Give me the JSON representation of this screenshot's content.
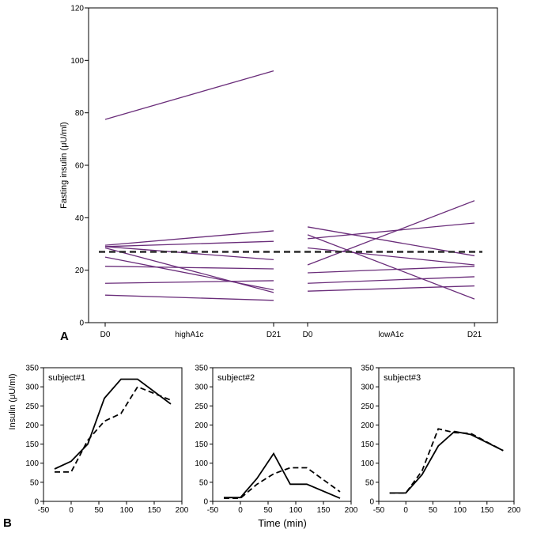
{
  "figure": {
    "panel_a": "A",
    "panel_b": "B",
    "shared_xlabel_b": "Time (min)"
  },
  "colors": {
    "subject_line": "#6a2d7a",
    "reference_line": "#333333",
    "solid_series": "#000000",
    "dashed_series": "#000000"
  },
  "chart_data": [
    {
      "id": "A",
      "type": "line",
      "title": "",
      "ylabel": "Fasting insulin (μU/ml)",
      "ylim": [
        0,
        120
      ],
      "yticks": [
        0,
        20,
        40,
        60,
        80,
        100,
        120
      ],
      "grid": false,
      "tick_labels": [
        "D0",
        "D21",
        "D0",
        "D21"
      ],
      "group_labels": [
        "highA1c",
        "lowA1c"
      ],
      "reference_line": {
        "value": 27,
        "style": "dashed"
      },
      "groups": [
        {
          "name": "highA1c",
          "x": [
            "D0",
            "D21"
          ],
          "subjects": [
            [
              77.5,
              96
            ],
            [
              29.5,
              35
            ],
            [
              29,
              31
            ],
            [
              29,
              24
            ],
            [
              28.5,
              11.5
            ],
            [
              25,
              12.5
            ],
            [
              21.5,
              20.5
            ],
            [
              15,
              16
            ],
            [
              10.5,
              8.5
            ]
          ]
        },
        {
          "name": "lowA1c",
          "x": [
            "D0",
            "D21"
          ],
          "subjects": [
            [
              36.5,
              25.5
            ],
            [
              33.5,
              9
            ],
            [
              32,
              38
            ],
            [
              28.5,
              22
            ],
            [
              22,
              46.5
            ],
            [
              19,
              21.5
            ],
            [
              15,
              17.5
            ],
            [
              12,
              14
            ]
          ]
        }
      ]
    },
    {
      "id": "B1",
      "type": "line",
      "label": "subject#1",
      "ylabel": "Insulin (μU/ml)",
      "xlabel": "",
      "xlim": [
        -50,
        200
      ],
      "ylim": [
        0,
        350
      ],
      "xticks": [
        -50,
        0,
        50,
        100,
        150,
        200
      ],
      "yticks": [
        0,
        50,
        100,
        150,
        200,
        250,
        300,
        350
      ],
      "series": [
        {
          "name": "solid",
          "style": "solid",
          "x": [
            -30,
            0,
            30,
            60,
            90,
            120,
            180
          ],
          "values": [
            85,
            105,
            150,
            270,
            320,
            320,
            255
          ]
        },
        {
          "name": "dashed",
          "style": "dashed",
          "x": [
            -30,
            0,
            30,
            60,
            90,
            120,
            180
          ],
          "values": [
            77,
            77,
            160,
            210,
            230,
            300,
            265
          ]
        }
      ]
    },
    {
      "id": "B2",
      "type": "line",
      "label": "subject#2",
      "xlabel": "",
      "xlim": [
        -50,
        200
      ],
      "ylim": [
        0,
        350
      ],
      "xticks": [
        -50,
        0,
        50,
        100,
        150,
        200
      ],
      "yticks": [
        0,
        50,
        100,
        150,
        200,
        250,
        300,
        350
      ],
      "series": [
        {
          "name": "solid",
          "style": "solid",
          "x": [
            -30,
            0,
            30,
            60,
            90,
            120,
            180
          ],
          "values": [
            10,
            10,
            60,
            125,
            45,
            45,
            8
          ]
        },
        {
          "name": "dashed",
          "style": "dashed",
          "x": [
            -30,
            0,
            30,
            60,
            90,
            120,
            180
          ],
          "values": [
            8,
            8,
            45,
            72,
            88,
            88,
            25
          ]
        }
      ]
    },
    {
      "id": "B3",
      "type": "line",
      "label": "subject#3",
      "xlabel": "",
      "xlim": [
        -50,
        200
      ],
      "ylim": [
        0,
        350
      ],
      "xticks": [
        -50,
        0,
        50,
        100,
        150,
        200
      ],
      "yticks": [
        0,
        50,
        100,
        150,
        200,
        250,
        300,
        350
      ],
      "series": [
        {
          "name": "solid",
          "style": "solid",
          "x": [
            -30,
            0,
            30,
            60,
            90,
            120,
            180
          ],
          "values": [
            22,
            22,
            70,
            145,
            183,
            175,
            133
          ]
        },
        {
          "name": "dashed",
          "style": "dashed",
          "x": [
            -30,
            0,
            30,
            60,
            90,
            120,
            180
          ],
          "values": [
            22,
            22,
            80,
            190,
            180,
            178,
            133
          ]
        }
      ]
    }
  ]
}
